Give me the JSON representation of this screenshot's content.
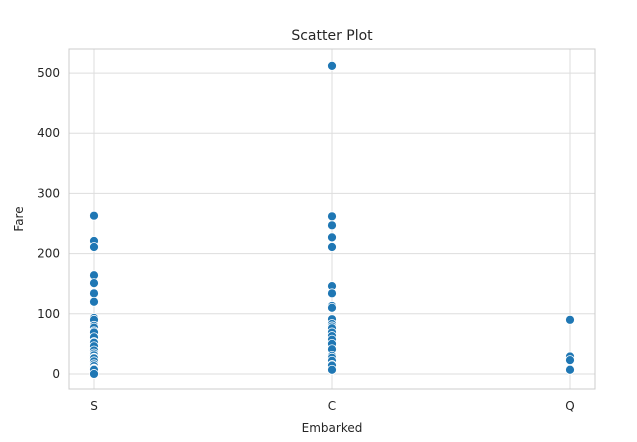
{
  "chart_data": {
    "type": "scatter",
    "title": "Scatter Plot",
    "xlabel": "Embarked",
    "ylabel": "Fare",
    "categories": [
      "S",
      "C",
      "Q"
    ],
    "ylim": [
      -25,
      540
    ],
    "yticks": [
      0,
      100,
      200,
      300,
      400,
      500
    ],
    "grid": true,
    "color": "#1f77b4",
    "points": [
      {
        "x": "S",
        "y": 263
      },
      {
        "x": "S",
        "y": 221
      },
      {
        "x": "S",
        "y": 211
      },
      {
        "x": "S",
        "y": 164
      },
      {
        "x": "S",
        "y": 151
      },
      {
        "x": "S",
        "y": 134
      },
      {
        "x": "S",
        "y": 120
      },
      {
        "x": "S",
        "y": 93
      },
      {
        "x": "S",
        "y": 90
      },
      {
        "x": "S",
        "y": 80
      },
      {
        "x": "S",
        "y": 77
      },
      {
        "x": "S",
        "y": 71
      },
      {
        "x": "S",
        "y": 69
      },
      {
        "x": "S",
        "y": 61
      },
      {
        "x": "S",
        "y": 53
      },
      {
        "x": "S",
        "y": 52
      },
      {
        "x": "S",
        "y": 46
      },
      {
        "x": "S",
        "y": 39
      },
      {
        "x": "S",
        "y": 34
      },
      {
        "x": "S",
        "y": 31
      },
      {
        "x": "S",
        "y": 27
      },
      {
        "x": "S",
        "y": 26
      },
      {
        "x": "S",
        "y": 21
      },
      {
        "x": "S",
        "y": 16
      },
      {
        "x": "S",
        "y": 13
      },
      {
        "x": "S",
        "y": 9
      },
      {
        "x": "S",
        "y": 8
      },
      {
        "x": "S",
        "y": 7
      },
      {
        "x": "S",
        "y": 0
      },
      {
        "x": "C",
        "y": 512
      },
      {
        "x": "C",
        "y": 262
      },
      {
        "x": "C",
        "y": 247
      },
      {
        "x": "C",
        "y": 227
      },
      {
        "x": "C",
        "y": 211
      },
      {
        "x": "C",
        "y": 146
      },
      {
        "x": "C",
        "y": 134
      },
      {
        "x": "C",
        "y": 113
      },
      {
        "x": "C",
        "y": 110
      },
      {
        "x": "C",
        "y": 91
      },
      {
        "x": "C",
        "y": 83
      },
      {
        "x": "C",
        "y": 79
      },
      {
        "x": "C",
        "y": 76
      },
      {
        "x": "C",
        "y": 69
      },
      {
        "x": "C",
        "y": 63
      },
      {
        "x": "C",
        "y": 57
      },
      {
        "x": "C",
        "y": 50
      },
      {
        "x": "C",
        "y": 41
      },
      {
        "x": "C",
        "y": 30
      },
      {
        "x": "C",
        "y": 27
      },
      {
        "x": "C",
        "y": 22
      },
      {
        "x": "C",
        "y": 15
      },
      {
        "x": "C",
        "y": 14
      },
      {
        "x": "C",
        "y": 7
      },
      {
        "x": "Q",
        "y": 90
      },
      {
        "x": "Q",
        "y": 29
      },
      {
        "x": "Q",
        "y": 23
      },
      {
        "x": "Q",
        "y": 8
      },
      {
        "x": "Q",
        "y": 7
      }
    ]
  }
}
